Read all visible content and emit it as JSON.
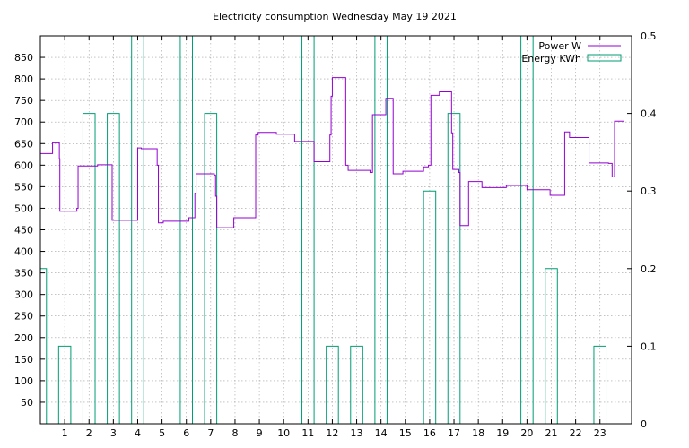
{
  "chart_data": {
    "type": "line",
    "title": "Electricity consumption Wednesday May 19 2021",
    "xlabel": "",
    "ylabel": "",
    "y2label": "",
    "xlim": [
      0,
      24.3
    ],
    "ylim": [
      0,
      900
    ],
    "y2lim": [
      0,
      0.5
    ],
    "x_ticks": [
      1,
      2,
      3,
      4,
      5,
      6,
      7,
      8,
      9,
      10,
      11,
      12,
      13,
      14,
      15,
      16,
      17,
      18,
      19,
      20,
      21,
      22,
      23
    ],
    "y_ticks": [
      50,
      100,
      150,
      200,
      250,
      300,
      350,
      400,
      450,
      500,
      550,
      600,
      650,
      700,
      750,
      800,
      850
    ],
    "y2_ticks": [
      0,
      0.1,
      0.2,
      0.3,
      0.4,
      0.5
    ],
    "y2_tick_labels": [
      "0",
      "0.1",
      "0.2",
      "0.3",
      "0.4",
      "0.5"
    ],
    "grid": true,
    "legend_position": "top-right",
    "series": [
      {
        "name": "Power W",
        "axis": "y",
        "style": "steps",
        "color": "#9400d3",
        "points": [
          [
            0.0,
            627
          ],
          [
            0.5,
            652
          ],
          [
            0.78,
            615
          ],
          [
            0.8,
            493
          ],
          [
            1.5,
            500
          ],
          [
            1.55,
            598
          ],
          [
            2.35,
            601
          ],
          [
            2.95,
            472
          ],
          [
            4.0,
            640
          ],
          [
            4.15,
            638
          ],
          [
            4.8,
            600
          ],
          [
            4.85,
            466
          ],
          [
            5.05,
            470
          ],
          [
            6.1,
            478
          ],
          [
            6.35,
            535
          ],
          [
            6.4,
            580
          ],
          [
            7.15,
            577
          ],
          [
            7.2,
            528
          ],
          [
            7.25,
            455
          ],
          [
            7.95,
            478
          ],
          [
            8.85,
            670
          ],
          [
            8.95,
            676
          ],
          [
            9.7,
            672
          ],
          [
            10.45,
            655
          ],
          [
            11.25,
            608
          ],
          [
            11.9,
            670
          ],
          [
            11.95,
            760
          ],
          [
            12.0,
            803
          ],
          [
            12.55,
            600
          ],
          [
            12.65,
            588
          ],
          [
            13.55,
            583
          ],
          [
            13.65,
            717
          ],
          [
            14.2,
            755
          ],
          [
            14.5,
            580
          ],
          [
            14.9,
            586
          ],
          [
            15.75,
            596
          ],
          [
            15.95,
            600
          ],
          [
            16.05,
            762
          ],
          [
            16.4,
            770
          ],
          [
            16.9,
            675
          ],
          [
            16.95,
            590
          ],
          [
            17.2,
            583
          ],
          [
            17.25,
            460
          ],
          [
            17.6,
            562
          ],
          [
            18.15,
            548
          ],
          [
            19.15,
            553
          ],
          [
            20.0,
            543
          ],
          [
            20.95,
            530
          ],
          [
            21.55,
            677
          ],
          [
            21.75,
            664
          ],
          [
            22.55,
            605
          ],
          [
            23.35,
            604
          ],
          [
            23.5,
            573
          ],
          [
            23.6,
            702
          ],
          [
            24.0,
            702
          ]
        ]
      },
      {
        "name": "Energy KWh",
        "axis": "y2",
        "style": "boxes",
        "color": "#009e73",
        "box_width": 0.5,
        "points": [
          [
            0,
            0.2
          ],
          [
            1,
            0.1
          ],
          [
            2,
            0.4
          ],
          [
            3,
            0.4
          ],
          [
            4,
            0.5
          ],
          [
            5,
            0
          ],
          [
            6,
            0.5
          ],
          [
            7,
            0.4
          ],
          [
            8,
            0
          ],
          [
            9,
            0
          ],
          [
            10,
            0
          ],
          [
            11,
            0.5
          ],
          [
            12,
            0.1
          ],
          [
            13,
            0.1
          ],
          [
            14,
            0.5
          ],
          [
            15,
            0
          ],
          [
            16,
            0.3
          ],
          [
            17,
            0.4
          ],
          [
            18,
            0
          ],
          [
            19,
            0
          ],
          [
            20,
            0.5
          ],
          [
            21,
            0.2
          ],
          [
            22,
            0
          ],
          [
            23,
            0.1
          ]
        ]
      }
    ]
  }
}
